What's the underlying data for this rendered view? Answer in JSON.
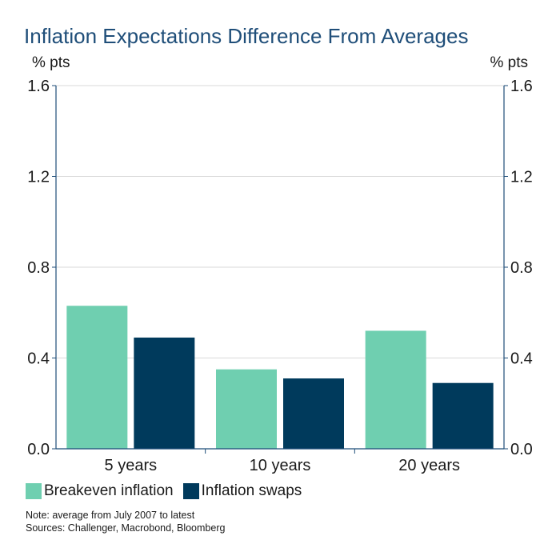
{
  "colors": {
    "series1": "#6fcfb0",
    "series2": "#003a5c",
    "axis": "#1f4e79",
    "grid": "#d9d9d9"
  },
  "chart_data": {
    "type": "bar",
    "title": "Inflation Expectations Difference From Averages",
    "ylabel_left": "% pts",
    "ylabel_right": "% pts",
    "ylim": [
      0,
      1.6
    ],
    "yticks": [
      "0.0",
      "0.4",
      "0.8",
      "1.2",
      "1.6"
    ],
    "categories": [
      "5 years",
      "10 years",
      "20 years"
    ],
    "series": [
      {
        "name": "Breakeven inflation",
        "values": [
          0.63,
          0.35,
          0.52
        ]
      },
      {
        "name": "Inflation swaps",
        "values": [
          0.49,
          0.31,
          0.29
        ]
      }
    ],
    "grid": true,
    "legend": "bottom-left"
  },
  "notes": {
    "note": "Note: average from July 2007 to latest",
    "sources": "Sources: Challenger, Macrobond, Bloomberg"
  }
}
